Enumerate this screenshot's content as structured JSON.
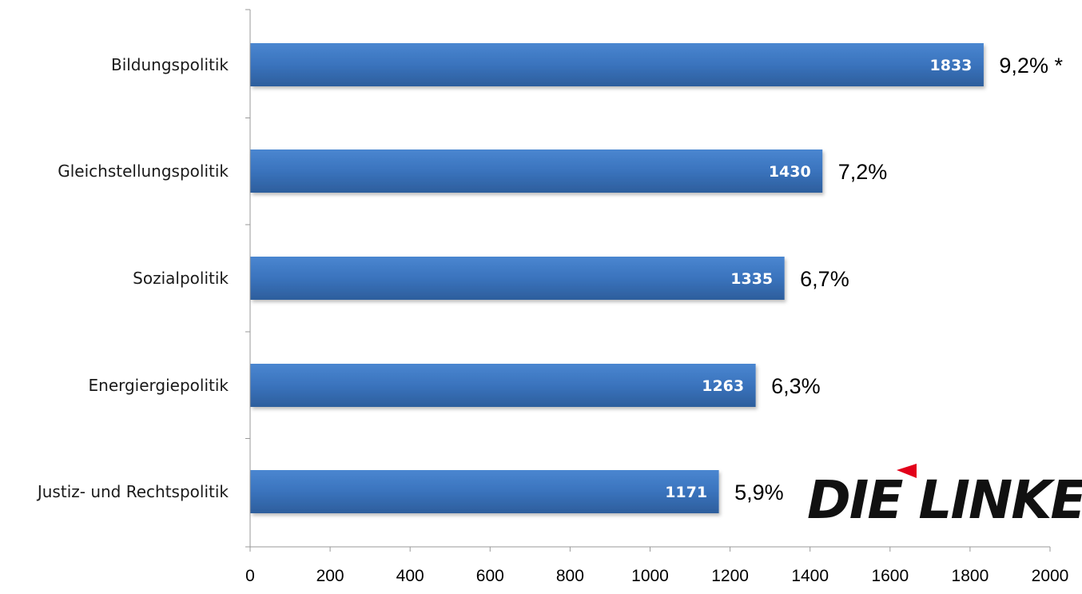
{
  "chart_data": {
    "type": "bar",
    "orientation": "horizontal",
    "categories": [
      "Bildungspolitik",
      "Gleichstellungspolitik",
      "Sozialpolitik",
      "Energiergiepolitik",
      "Justiz- und Rechtspolitik"
    ],
    "values": [
      1833,
      1430,
      1335,
      1263,
      1171
    ],
    "value_labels": [
      "1833",
      "1430",
      "1335",
      "1263",
      "1171"
    ],
    "percent_labels": [
      "9,2% *",
      "7,2%",
      "6,7%",
      "6,3%",
      "5,9%"
    ],
    "xlim": [
      0,
      2000
    ],
    "xticks": [
      "0",
      "200",
      "400",
      "600",
      "800",
      "1000",
      "1200",
      "1400",
      "1600",
      "1800",
      "2000"
    ],
    "title": "",
    "xlabel": "",
    "ylabel": "",
    "grid": false,
    "bar_color": "#3a73bd",
    "bar_color_dark": "#2e5f9f"
  },
  "logo": {
    "text": "DIE LINKE.",
    "accent_color": "#e2001a",
    "text_color": "#111111"
  }
}
